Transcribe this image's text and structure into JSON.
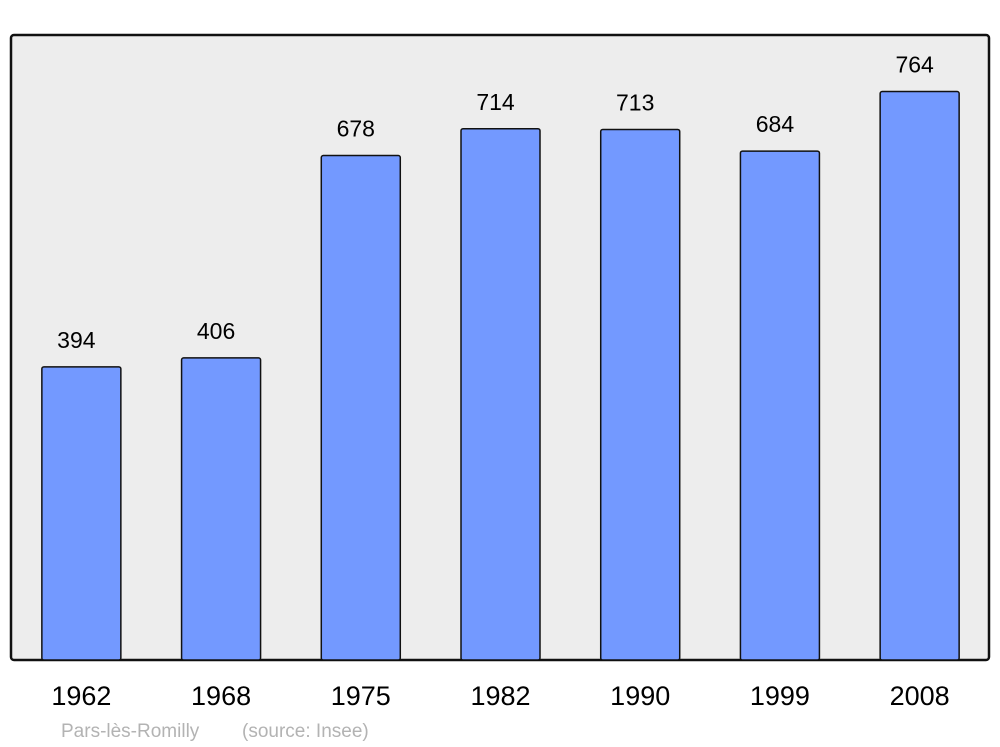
{
  "chart_data": {
    "type": "bar",
    "categories": [
      "1962",
      "1968",
      "1975",
      "1982",
      "1990",
      "1999",
      "2008"
    ],
    "values": [
      394,
      406,
      678,
      714,
      713,
      684,
      764
    ],
    "title": "",
    "xlabel": "",
    "ylabel": "",
    "ylim": [
      0,
      840
    ],
    "grid": false,
    "colors": {
      "bar": "#7399ff",
      "background": "#ededed",
      "caption": "#b3b3b3"
    }
  },
  "caption": {
    "place": "Pars-lès-Romilly",
    "source": "(source: Insee)"
  }
}
